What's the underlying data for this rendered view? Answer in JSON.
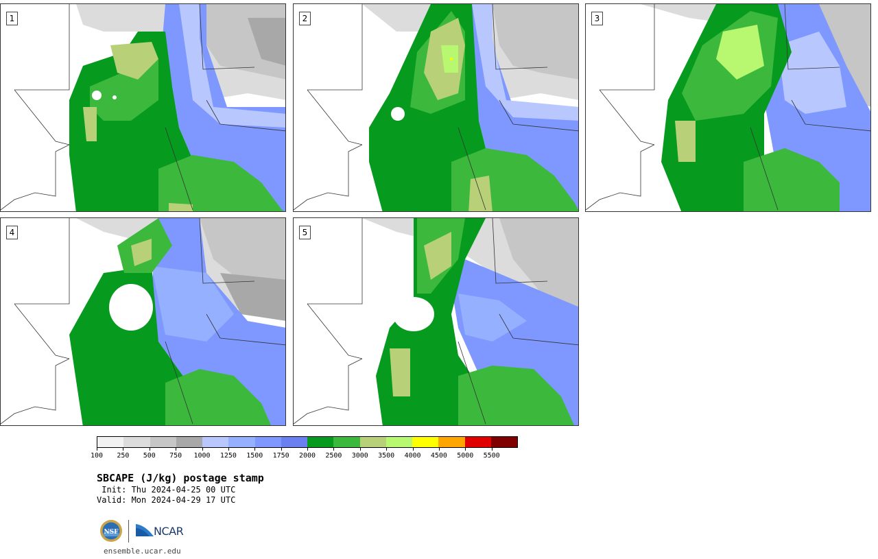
{
  "panels": [
    {
      "label": "1"
    },
    {
      "label": "2"
    },
    {
      "label": "3"
    },
    {
      "label": "4"
    },
    {
      "label": "5"
    }
  ],
  "colorbar": {
    "colors": [
      "#f2f2f2",
      "#dcdcdc",
      "#c6c6c6",
      "#a8a8a8",
      "#b8c8ff",
      "#94b0ff",
      "#7e98ff",
      "#6a80f0",
      "#069a1e",
      "#3cb83c",
      "#b8d078",
      "#b8f870",
      "#ffff00",
      "#ffa500",
      "#e00000",
      "#800000"
    ],
    "tick_labels": [
      "100",
      "250",
      "500",
      "750",
      "1000",
      "1250",
      "1500",
      "1750",
      "2000",
      "2500",
      "3000",
      "3500",
      "4000",
      "4500",
      "5000",
      "5500"
    ]
  },
  "title": "SBCAPE (J/kg) postage stamp",
  "init": " Init: Thu 2024-04-25 00 UTC",
  "valid": "Valid: Mon 2024-04-29 17 UTC",
  "logos": {
    "nsf": "NSF",
    "ncar": "NCAR"
  },
  "site": "ensemble.ucar.edu"
}
